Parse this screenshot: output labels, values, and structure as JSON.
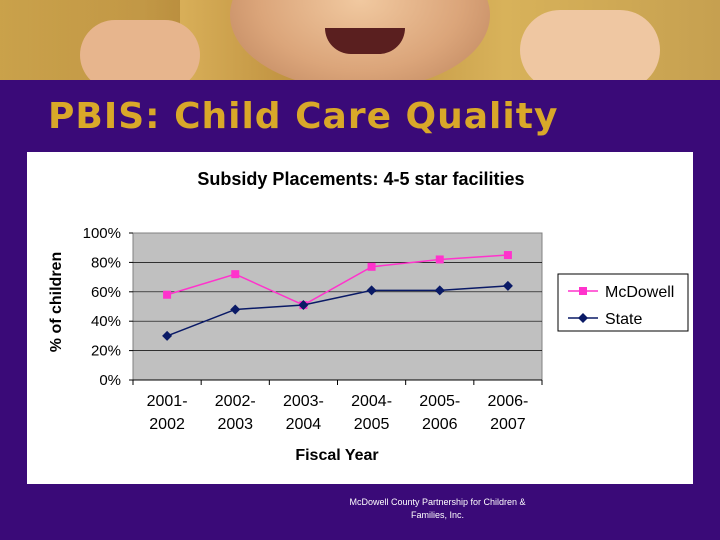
{
  "slide": {
    "title": "PBIS: Child Care Quality",
    "footer_line1": "McDowell County Partnership for Children &",
    "footer_line2": "Families, Inc."
  },
  "colors": {
    "background": "#3a0a78",
    "title": "#d9a829",
    "mcdowell": "#ff33cc",
    "state": "#0a1a66",
    "plot_area": "#c0c0c0"
  },
  "chart_data": {
    "type": "line",
    "title": "Subsidy Placements: 4-5 star facilities",
    "xlabel": "Fiscal Year",
    "ylabel": "% of children",
    "ylim": [
      0,
      100
    ],
    "yticks": [
      "0%",
      "20%",
      "40%",
      "60%",
      "80%",
      "100%"
    ],
    "categories": [
      [
        "2001-",
        "2002"
      ],
      [
        "2002-",
        "2003"
      ],
      [
        "2003-",
        "2004"
      ],
      [
        "2004-",
        "2005"
      ],
      [
        "2005-",
        "2006"
      ],
      [
        "2006-",
        "2007"
      ]
    ],
    "series": [
      {
        "name": "McDowell",
        "values": [
          58,
          72,
          51,
          77,
          82,
          85
        ],
        "marker": "square",
        "color": "#ff33cc"
      },
      {
        "name": "State",
        "values": [
          30,
          48,
          51,
          61,
          61,
          64
        ],
        "marker": "diamond",
        "color": "#0a1a66"
      }
    ],
    "grid": true,
    "legend": "right"
  }
}
